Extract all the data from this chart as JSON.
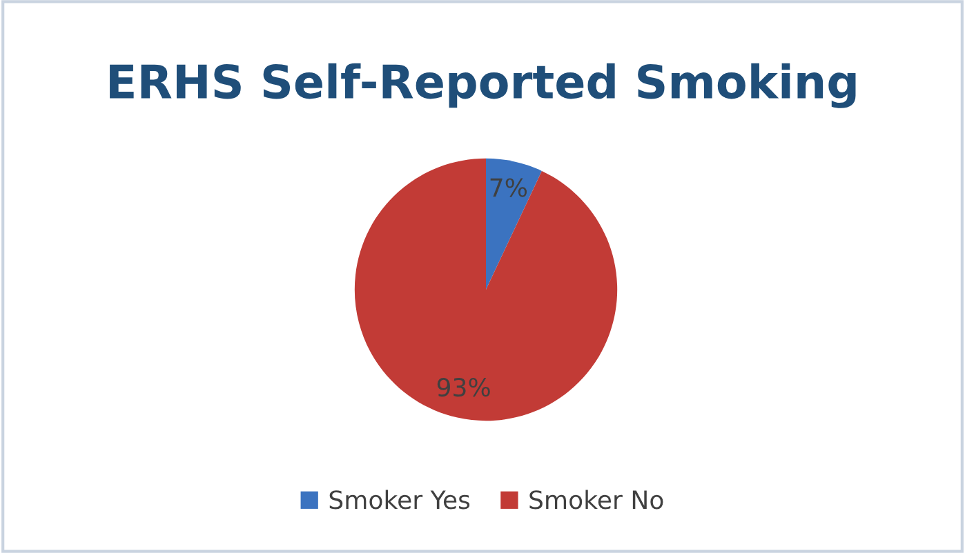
{
  "chart_data": {
    "type": "pie",
    "title": "ERHS Self-Reported Smoking",
    "categories": [
      "Smoker Yes",
      "Smoker No"
    ],
    "values": [
      7,
      93
    ],
    "colors": [
      "#3b73c0",
      "#c23b36"
    ],
    "value_labels": [
      "7%",
      "93%"
    ],
    "legend": "bottom"
  }
}
